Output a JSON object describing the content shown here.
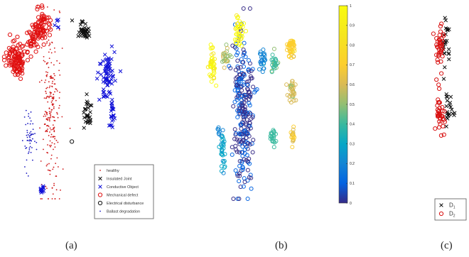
{
  "figure": {
    "panel_labels": [
      "(a)",
      "(b)",
      "(c)"
    ]
  },
  "colors": {
    "healthy": "#d01818",
    "insulated_joint": "#111111",
    "conductive_object": "#1010d8",
    "mechanical_defect": "#e01010",
    "electrical_disturbance": "#111111",
    "ballast_degradation": "#1818c0",
    "d1": "#111111",
    "d2": "#d81010"
  },
  "chart_data": [
    {
      "id": "a",
      "type": "scatter",
      "title": "",
      "xlabel": "",
      "ylabel": "",
      "legend_position": "bottom-right",
      "series": [
        {
          "name": "healthy",
          "marker": "dot",
          "color": "#d01818",
          "clusters": [
            [
              0.37,
              0.55,
              0.07,
              0.4,
              230
            ]
          ]
        },
        {
          "name": "Insulated Joint",
          "marker": "x",
          "color": "#111111",
          "clusters": [
            [
              0.63,
              0.13,
              0.04,
              0.04,
              40
            ],
            [
              0.66,
              0.56,
              0.03,
              0.07,
              30
            ]
          ]
        },
        {
          "name": "Conductive Object",
          "marker": "x",
          "color": "#1010d8",
          "clusters": [
            [
              0.81,
              0.35,
              0.06,
              0.11,
              70
            ],
            [
              0.85,
              0.56,
              0.025,
              0.07,
              25
            ],
            [
              0.3,
              0.95,
              0.02,
              0.03,
              12
            ],
            [
              0.42,
              0.09,
              0.02,
              0.04,
              6
            ]
          ]
        },
        {
          "name": "Mechanical defect",
          "marker": "circle",
          "color": "#e01010",
          "clusters": [
            [
              0.3,
              0.1,
              0.06,
              0.08,
              70
            ],
            [
              0.1,
              0.28,
              0.07,
              0.09,
              110
            ],
            [
              0.24,
              0.17,
              0.05,
              0.06,
              35
            ]
          ]
        },
        {
          "name": "Electrical disturbance",
          "marker": "circle",
          "color": "#111111",
          "clusters": [
            [
              0.54,
              0.7,
              0.008,
              0.008,
              1
            ]
          ]
        },
        {
          "name": "Ballast degradation",
          "marker": "dot",
          "color": "#1818c0",
          "clusters": [
            [
              0.2,
              0.71,
              0.04,
              0.13,
              55
            ]
          ]
        }
      ]
    },
    {
      "id": "b",
      "type": "scatter",
      "title": "",
      "xlabel": "",
      "ylabel": "",
      "colorbar": {
        "min": 0,
        "max": 1,
        "ticks": [
          "0",
          "0.1",
          "0.2",
          "0.3",
          "0.4",
          "0.5",
          "0.6",
          "0.7",
          "0.8",
          "0.9",
          "1"
        ]
      },
      "clusters": [
        {
          "cx": 0.3,
          "cy": 0.55,
          "sx": 0.07,
          "sy": 0.4,
          "n": 260,
          "value": 0.05
        },
        {
          "cx": 0.27,
          "cy": 0.12,
          "sx": 0.04,
          "sy": 0.07,
          "n": 40,
          "value": 0.97
        },
        {
          "cx": 0.05,
          "cy": 0.3,
          "sx": 0.025,
          "sy": 0.1,
          "n": 40,
          "value": 0.95
        },
        {
          "cx": 0.16,
          "cy": 0.26,
          "sx": 0.03,
          "sy": 0.04,
          "n": 25,
          "value": 0.62
        },
        {
          "cx": 0.46,
          "cy": 0.28,
          "sx": 0.02,
          "sy": 0.06,
          "n": 25,
          "value": 0.22
        },
        {
          "cx": 0.56,
          "cy": 0.28,
          "sx": 0.02,
          "sy": 0.06,
          "n": 25,
          "value": 0.5
        },
        {
          "cx": 0.7,
          "cy": 0.2,
          "sx": 0.035,
          "sy": 0.05,
          "n": 45,
          "value": 0.78
        },
        {
          "cx": 0.7,
          "cy": 0.42,
          "sx": 0.03,
          "sy": 0.06,
          "n": 35,
          "value": 0.64
        },
        {
          "cx": 0.55,
          "cy": 0.68,
          "sx": 0.02,
          "sy": 0.05,
          "n": 22,
          "value": 0.45
        },
        {
          "cx": 0.71,
          "cy": 0.67,
          "sx": 0.015,
          "sy": 0.05,
          "n": 18,
          "value": 0.72
        },
        {
          "cx": 0.14,
          "cy": 0.77,
          "sx": 0.02,
          "sy": 0.12,
          "n": 30,
          "value": 0.3
        },
        {
          "cx": 0.1,
          "cy": 0.65,
          "sx": 0.01,
          "sy": 0.02,
          "n": 6,
          "value": 0.25
        }
      ]
    },
    {
      "id": "c",
      "type": "scatter",
      "title": "",
      "xlabel": "",
      "ylabel": "",
      "legend_position": "bottom",
      "series": [
        {
          "name": "D1",
          "label_main": "D",
          "label_sub": "1",
          "marker": "x",
          "color": "#111111",
          "clusters": [
            [
              0.55,
              0.22,
              0.08,
              0.12,
              25
            ],
            [
              0.62,
              0.58,
              0.09,
              0.09,
              22
            ]
          ]
        },
        {
          "name": "D2",
          "label_main": "D",
          "label_sub": "2",
          "marker": "circle",
          "color": "#d81010",
          "clusters": [
            [
              0.4,
              0.25,
              0.1,
              0.13,
              40
            ],
            [
              0.4,
              0.62,
              0.1,
              0.1,
              35
            ]
          ]
        }
      ]
    }
  ]
}
